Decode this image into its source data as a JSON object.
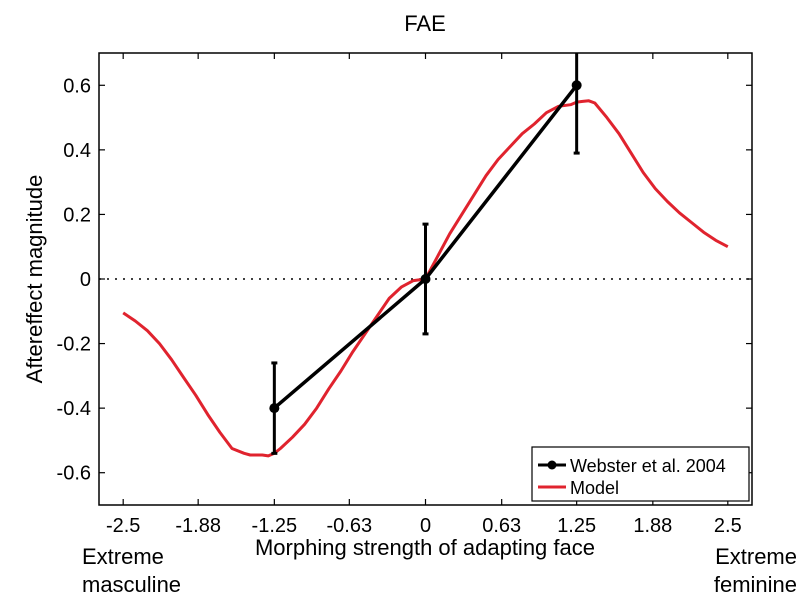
{
  "chart_data": {
    "type": "line",
    "title": "FAE",
    "xlabel": "Morphing strength of adapting face",
    "ylabel": "Aftereffect magnitude",
    "xlim": [
      -2.7,
      2.7
    ],
    "ylim": [
      -0.7,
      0.7
    ],
    "x_ticks": [
      -2.5,
      -1.88,
      -1.25,
      -0.63,
      0,
      0.63,
      1.25,
      1.88,
      2.5
    ],
    "x_tick_labels": [
      "-2.5",
      "-1.88",
      "-1.25",
      "-0.63",
      "0",
      "0.63",
      "1.25",
      "1.88",
      "2.5"
    ],
    "y_ticks": [
      0.6,
      0.4,
      0.2,
      0,
      -0.2,
      -0.4,
      -0.6
    ],
    "y_tick_labels": [
      "0.6",
      "0.4",
      "0.2",
      "0",
      "-0.2",
      "-0.4",
      "-0.6"
    ],
    "zero_line": "dotted",
    "legend_position": "bottom-right",
    "series": [
      {
        "name": "Webster et al. 2004",
        "color": "#000000",
        "marker": "circle",
        "x": [
          -1.25,
          0,
          1.25
        ],
        "y": [
          -0.4,
          0.0,
          0.6
        ],
        "err_low": [
          0.14,
          0.17,
          0.21
        ],
        "err_high": [
          0.14,
          0.17,
          0.21
        ]
      },
      {
        "name": "Model",
        "color": "#e0232e",
        "x": [
          -2.5,
          -2.4,
          -2.3,
          -2.2,
          -2.1,
          -2.0,
          -1.9,
          -1.8,
          -1.7,
          -1.6,
          -1.5,
          -1.45,
          -1.4,
          -1.35,
          -1.3,
          -1.25,
          -1.2,
          -1.1,
          -1.0,
          -0.9,
          -0.8,
          -0.7,
          -0.6,
          -0.5,
          -0.4,
          -0.3,
          -0.2,
          -0.1,
          0.0,
          0.1,
          0.2,
          0.3,
          0.4,
          0.5,
          0.6,
          0.7,
          0.8,
          0.9,
          1.0,
          1.1,
          1.2,
          1.25,
          1.3,
          1.35,
          1.4,
          1.5,
          1.6,
          1.7,
          1.8,
          1.9,
          2.0,
          2.1,
          2.2,
          2.3,
          2.4,
          2.5
        ],
        "y": [
          -0.105,
          -0.13,
          -0.16,
          -0.2,
          -0.25,
          -0.305,
          -0.36,
          -0.42,
          -0.475,
          -0.525,
          -0.54,
          -0.545,
          -0.545,
          -0.545,
          -0.548,
          -0.54,
          -0.525,
          -0.49,
          -0.45,
          -0.4,
          -0.34,
          -0.285,
          -0.225,
          -0.17,
          -0.115,
          -0.06,
          -0.025,
          -0.005,
          0.0,
          0.07,
          0.14,
          0.2,
          0.26,
          0.32,
          0.37,
          0.41,
          0.45,
          0.48,
          0.515,
          0.535,
          0.54,
          0.548,
          0.55,
          0.552,
          0.545,
          0.5,
          0.45,
          0.39,
          0.33,
          0.28,
          0.24,
          0.205,
          0.175,
          0.145,
          0.12,
          0.1
        ]
      }
    ],
    "endpoint_labels": {
      "left": [
        "Extreme",
        "masculine"
      ],
      "right": [
        "Extreme",
        "feminine"
      ]
    }
  }
}
